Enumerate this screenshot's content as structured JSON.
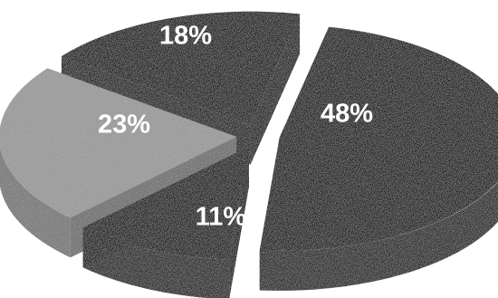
{
  "chart_data": {
    "type": "pie",
    "style": "3d-exploded",
    "title": "",
    "slices": [
      {
        "label": "48%",
        "value": 48,
        "color": "#0a0a0a"
      },
      {
        "label": "11%",
        "value": 11,
        "color": "#080808"
      },
      {
        "label": "23%",
        "value": 23,
        "color": "#9a9a9a"
      },
      {
        "label": "18%",
        "value": 18,
        "color": "#0b0b0b"
      }
    ]
  }
}
